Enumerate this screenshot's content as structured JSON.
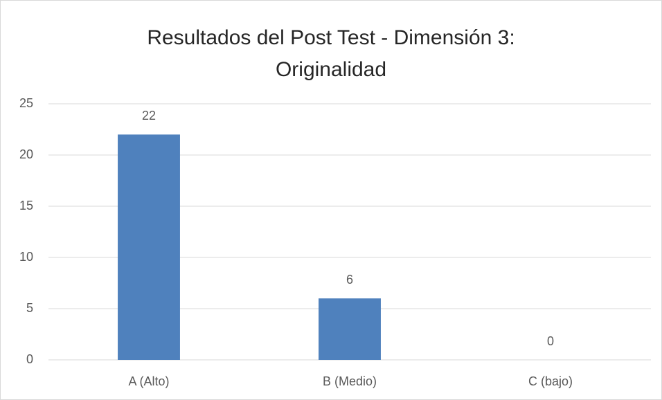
{
  "chart_data": {
    "type": "bar",
    "title": "Resultados del Post Test - Dimensión 3: Originalidad",
    "categories": [
      "A (Alto)",
      "B (Medio)",
      "C (bajo)"
    ],
    "values": [
      22,
      6,
      0
    ],
    "color": "#4f81bd",
    "ylim": [
      0,
      25
    ],
    "yticks": [
      0,
      5,
      10,
      15,
      20,
      25
    ],
    "grid": true
  }
}
